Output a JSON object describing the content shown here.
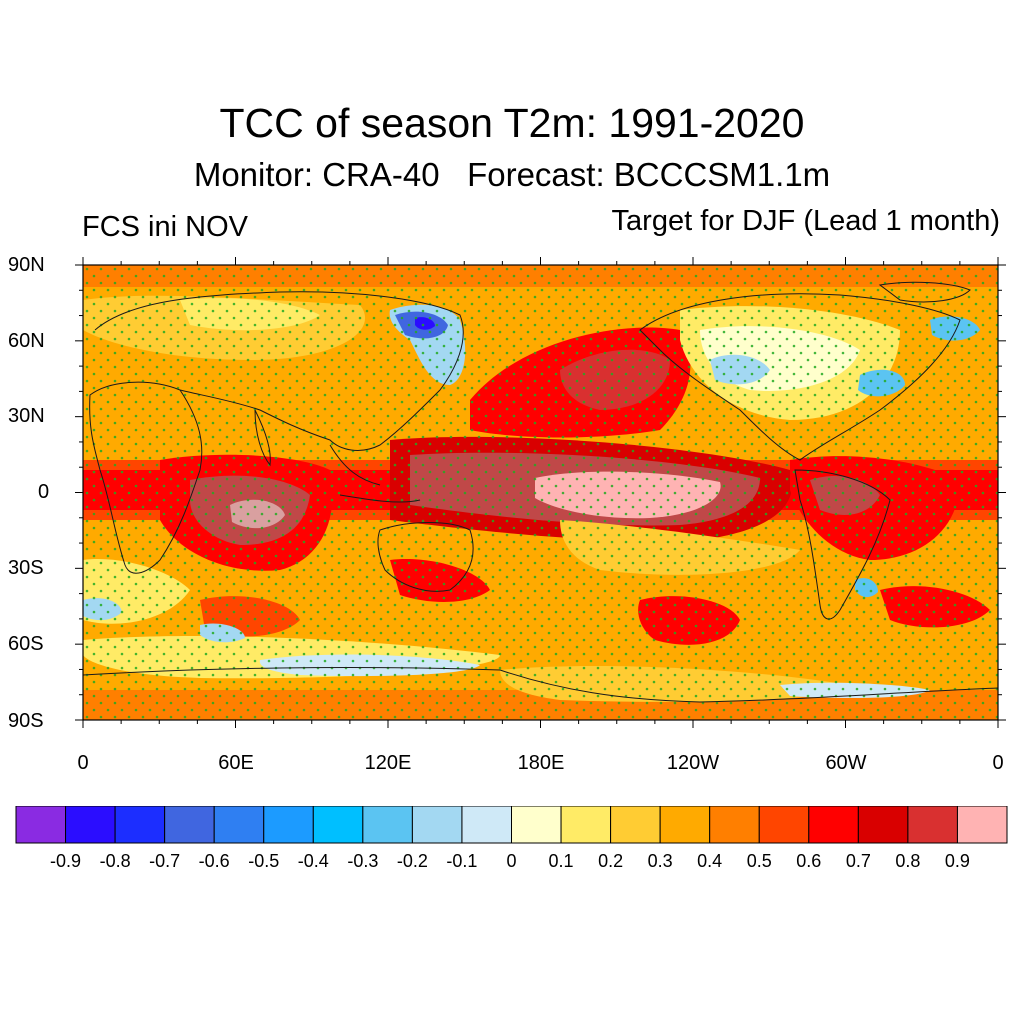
{
  "title": "TCC of season T2m: 1991-2020",
  "subtitle": "Monitor: CRA-40   Forecast: BCCCSM1.1m",
  "left_label": "FCS ini NOV",
  "right_label": "Target for DJF (Lead 1 month)",
  "lat_labels": [
    "90N",
    "60N",
    "30N",
    "0",
    "30S",
    "60S",
    "90S"
  ],
  "lon_labels": [
    "0",
    "60E",
    "120E",
    "180E",
    "120W",
    "60W",
    "0"
  ],
  "colorbar": {
    "colors": [
      "#8a2be2",
      "#2b0dff",
      "#1c2eff",
      "#4066e0",
      "#2f7ff2",
      "#1c9bff",
      "#00bfff",
      "#5bc4f2",
      "#a3d8f2",
      "#cfe9f7",
      "#ffffcc",
      "#ffeb66",
      "#ffcc33",
      "#ffaa00",
      "#ff7f00",
      "#ff4500",
      "#ff0000",
      "#d90000",
      "#d93030",
      "#ffb3b3"
    ],
    "tick_labels": [
      "-0.9",
      "-0.8",
      "-0.7",
      "-0.6",
      "-0.5",
      "-0.4",
      "-0.3",
      "-0.2",
      "-0.1",
      "0",
      "0.1",
      "0.2",
      "0.3",
      "0.4",
      "0.5",
      "0.6",
      "0.7",
      "0.8",
      "0.9"
    ]
  }
}
